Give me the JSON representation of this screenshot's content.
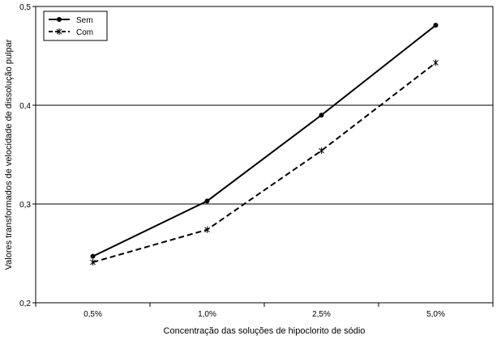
{
  "chart_data": {
    "type": "line",
    "title": "",
    "xlabel": "Concentração das soluções de hipoclorito de sódio",
    "ylabel": "Valores transformados de velocidade de dissolução pulpar",
    "categories": [
      "0,5%",
      "1,0%",
      "2,5%",
      "5,0%"
    ],
    "yticks": [
      "0,2",
      "0,3",
      "0,4",
      "0,5"
    ],
    "ylim": [
      0.2,
      0.5
    ],
    "grid": "horizontal",
    "legend_position": "top-left",
    "series": [
      {
        "name": "Sem",
        "values": [
          0.247,
          0.303,
          0.39,
          0.481
        ],
        "line_style": "solid",
        "marker": "circle",
        "color": "#000000"
      },
      {
        "name": "Com",
        "values": [
          0.241,
          0.274,
          0.354,
          0.443
        ],
        "line_style": "dashed",
        "marker": "star",
        "color": "#000000"
      }
    ]
  }
}
